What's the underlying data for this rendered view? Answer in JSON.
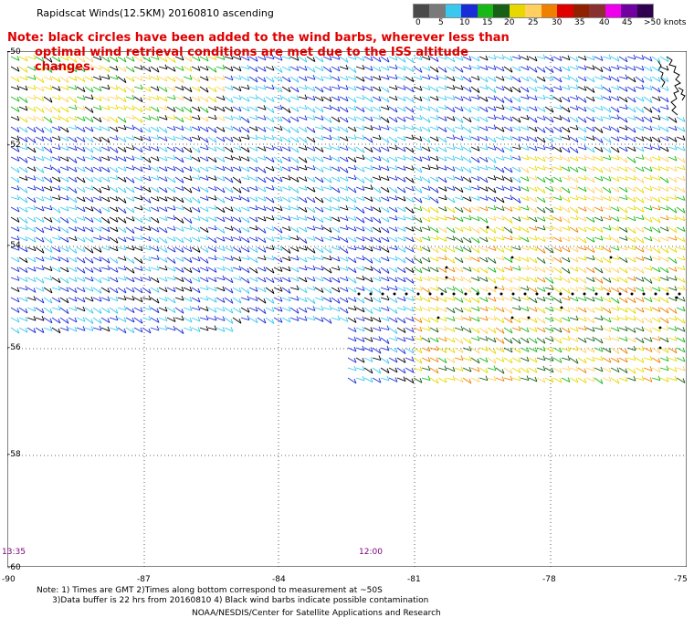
{
  "title": "Rapidscat Winds(12.5KM) 20160810 ascending",
  "note": {
    "line1": "Note: black circles have been added to the wind barbs, wherever less than",
    "line2": "optimal wind retrieval conditions are met due to the ISS altitude changes."
  },
  "legend": {
    "colors": [
      "#4a4a4a",
      "#7a7a7a",
      "#3ac8ee",
      "#1a2cd8",
      "#18b818",
      "#186018",
      "#e8d800",
      "#ffd060",
      "#f08000",
      "#e00000",
      "#902000",
      "#8a3030",
      "#ee00ee",
      "#7000a0",
      "#300050"
    ],
    "labels": [
      "0",
      "5",
      "10",
      "15",
      "20",
      "25",
      "30",
      "35",
      "40",
      "45",
      ">50 knots"
    ]
  },
  "lat_labels": [
    "-50",
    "-52",
    "-54",
    "-56",
    "-58",
    "-60"
  ],
  "lon_labels": [
    "-90",
    "-87",
    "-84",
    "-81",
    "-78",
    "-75"
  ],
  "time_labels": [
    "13:35",
    "12:00"
  ],
  "footnotes": "Note: 1) Times are GMT 2)Times along bottom correspond to measurement at ~50S\n      3)Data buffer is 22 hrs from 20160810 4) Black wind barbs indicate possible contamination",
  "credit": "NOAA/NESDIS/Center for Satellite Applications and Research"
}
